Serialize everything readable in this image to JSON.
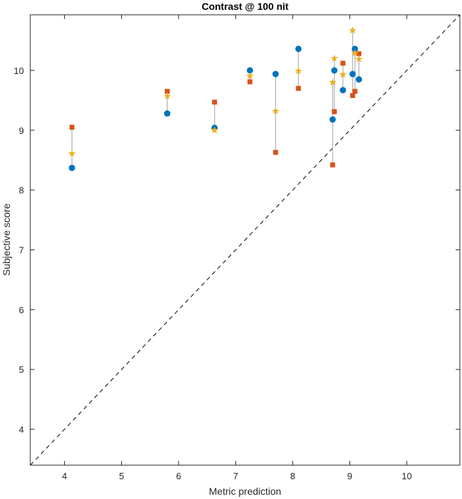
{
  "chart_data": {
    "type": "scatter",
    "title": "Contrast @ 100 nit",
    "xlabel": "Metric prediction",
    "ylabel": "Subjective score",
    "xlim": [
      3.4,
      10.93
    ],
    "ylim": [
      3.4,
      10.93
    ],
    "xticks": [
      4,
      5,
      6,
      7,
      8,
      9,
      10
    ],
    "yticks": [
      4,
      5,
      6,
      7,
      8,
      9,
      10
    ],
    "xtick_labels": [
      "4",
      "5",
      "6",
      "7",
      "8",
      "9",
      "10"
    ],
    "ytick_labels": [
      "4",
      "5",
      "6",
      "7",
      "8",
      "9",
      "10"
    ],
    "reference_line": "y = x (dashed)",
    "colors": {
      "series_a": "#0072bd",
      "series_b": "#d95319",
      "series_c": "#edb120",
      "connector": "#b0b0b0",
      "axis": "#262626",
      "reference": "#000000"
    },
    "groups": [
      {
        "x": 4.13,
        "circle": 8.37,
        "square": 9.05,
        "star": 8.61
      },
      {
        "x": 5.8,
        "circle": 9.28,
        "square": 9.65,
        "star": 9.57
      },
      {
        "x": 6.63,
        "circle": 9.04,
        "square": 9.47,
        "star": 9.0
      },
      {
        "x": 7.25,
        "circle": 10.0,
        "square": 9.81,
        "star": 9.91
      },
      {
        "x": 7.7,
        "circle": 9.94,
        "square": 8.63,
        "star": 9.32
      },
      {
        "x": 8.1,
        "circle": 10.36,
        "square": 9.7,
        "star": 9.99
      },
      {
        "x": 8.7,
        "circle": 9.18,
        "square": 8.42,
        "star": 9.8
      },
      {
        "x": 8.73,
        "circle": 10.0,
        "square": 9.31,
        "star": 10.2
      },
      {
        "x": 8.88,
        "circle": 9.67,
        "square": 10.12,
        "star": 9.93
      },
      {
        "x": 9.05,
        "circle": 9.94,
        "square": 9.58,
        "star": 10.67
      },
      {
        "x": 9.09,
        "circle": 10.36,
        "square": 9.65,
        "star": 10.29
      },
      {
        "x": 9.16,
        "circle": 9.85,
        "square": 10.28,
        "star": 10.19
      }
    ]
  }
}
